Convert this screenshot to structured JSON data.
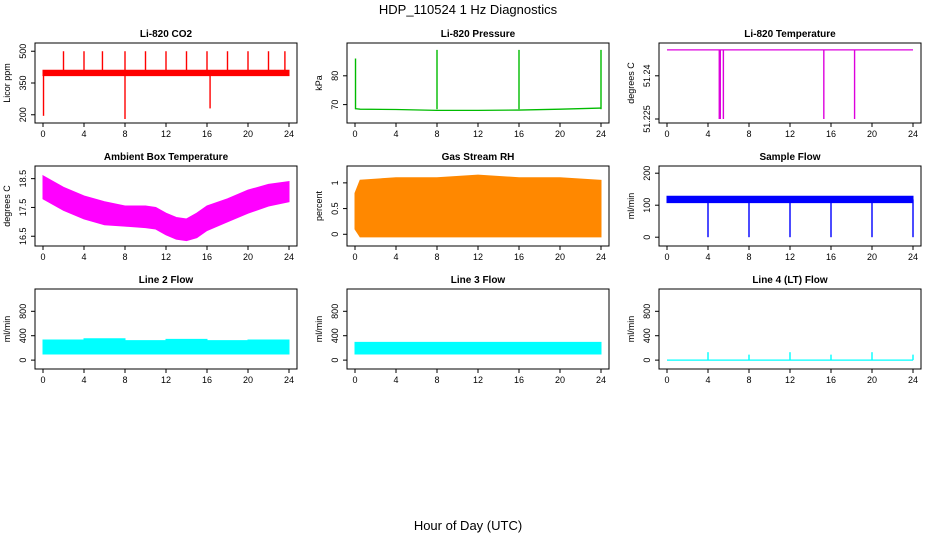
{
  "figure": {
    "title": "HDP_110524  1 Hz Diagnostics",
    "xlabel": "Hour of Day (UTC)"
  },
  "chart_data": [
    {
      "type": "line",
      "title": "Li-820 CO2",
      "ylabel": "Licor ppm",
      "color": "#ff0000",
      "xlim": [
        0,
        24
      ],
      "xticks": [
        0,
        4,
        8,
        12,
        16,
        20,
        24
      ],
      "ylim": [
        180,
        520
      ],
      "yticks": [
        200,
        350,
        500
      ],
      "series": [
        {
          "kind": "band",
          "x": [
            0,
            24
          ],
          "low": [
            385,
            385
          ],
          "high": [
            410,
            410
          ]
        },
        {
          "kind": "spikes",
          "x": [
            2,
            4,
            5.8,
            8,
            10,
            12,
            14,
            16,
            18,
            20,
            22,
            23.6
          ],
          "base": 400,
          "values": [
            500,
            500,
            500,
            500,
            500,
            500,
            500,
            500,
            500,
            500,
            500,
            500
          ]
        },
        {
          "kind": "spikes",
          "x": [
            0.05,
            8,
            16.3
          ],
          "base": 390,
          "values": [
            195,
            180,
            230
          ]
        }
      ]
    },
    {
      "type": "line",
      "title": "Li-820 Pressure",
      "ylabel": "kPa",
      "color": "#00bb00",
      "xlim": [
        0,
        24
      ],
      "xticks": [
        0,
        4,
        8,
        12,
        16,
        20,
        24
      ],
      "ylim": [
        65,
        90
      ],
      "yticks": [
        70,
        80
      ],
      "series": [
        {
          "kind": "line",
          "x": [
            0,
            0.5,
            4,
            8,
            12,
            16,
            20,
            24
          ],
          "y": [
            68.6,
            68.4,
            68.3,
            68.0,
            68.0,
            68.1,
            68.4,
            68.8
          ]
        },
        {
          "kind": "spikes",
          "x": [
            0.05,
            8,
            16,
            24
          ],
          "base": 68.4,
          "values": [
            86,
            89,
            89,
            89
          ]
        }
      ]
    },
    {
      "type": "line",
      "title": "Li-820 Temperature",
      "ylabel": "degrees C",
      "color": "#dd00dd",
      "xlim": [
        0,
        24
      ],
      "xticks": [
        0,
        4,
        8,
        12,
        16,
        20,
        24
      ],
      "ylim": [
        51.225,
        51.25
      ],
      "yticks": [
        51.225,
        51.24
      ],
      "series": [
        {
          "kind": "line",
          "x": [
            0,
            24
          ],
          "y": [
            51.249,
            51.249
          ]
        },
        {
          "kind": "spikes",
          "x": [
            5.1,
            5.2,
            5.5,
            15.3,
            18.3
          ],
          "base": 51.249,
          "values": [
            51.225,
            51.225,
            51.225,
            51.225,
            51.225
          ]
        }
      ]
    },
    {
      "type": "line",
      "title": "Ambient Box Temperature",
      "ylabel": "degrees C",
      "color": "#ff00ff",
      "xlim": [
        0,
        24
      ],
      "xticks": [
        0,
        4,
        8,
        12,
        16,
        20,
        24
      ],
      "ylim": [
        16.3,
        18.8
      ],
      "yticks": [
        16.5,
        17.5,
        18.5
      ],
      "series": [
        {
          "kind": "band",
          "x": [
            0,
            1,
            2,
            4,
            6,
            8,
            10,
            11,
            12,
            13,
            14,
            15,
            16,
            18,
            20,
            22,
            24
          ],
          "low": [
            17.8,
            17.6,
            17.4,
            17.1,
            16.9,
            16.85,
            16.8,
            16.75,
            16.55,
            16.4,
            16.35,
            16.45,
            16.7,
            17.0,
            17.3,
            17.55,
            17.7
          ],
          "high": [
            18.6,
            18.4,
            18.2,
            17.9,
            17.7,
            17.55,
            17.55,
            17.5,
            17.3,
            17.15,
            17.1,
            17.3,
            17.55,
            17.8,
            18.1,
            18.3,
            18.4
          ]
        }
      ]
    },
    {
      "type": "scatter",
      "title": "Gas Stream RH",
      "ylabel": "percent",
      "color": "#ff8800",
      "xlim": [
        0,
        24
      ],
      "xticks": [
        0,
        4,
        8,
        12,
        16,
        20,
        24
      ],
      "ylim": [
        -0.15,
        1.25
      ],
      "yticks": [
        0.0,
        0.5,
        1.0
      ],
      "series": [
        {
          "kind": "band",
          "x": [
            0,
            0.5,
            4,
            8,
            12,
            16,
            20,
            24
          ],
          "low": [
            0.1,
            -0.05,
            -0.05,
            -0.05,
            -0.05,
            -0.05,
            -0.05,
            -0.05
          ],
          "high": [
            0.8,
            1.05,
            1.1,
            1.1,
            1.15,
            1.1,
            1.1,
            1.05
          ]
        }
      ]
    },
    {
      "type": "line",
      "title": "Sample Flow",
      "ylabel": "ml/min",
      "color": "#0000ff",
      "xlim": [
        0,
        24
      ],
      "xticks": [
        0,
        4,
        8,
        12,
        16,
        20,
        24
      ],
      "ylim": [
        -15,
        210
      ],
      "yticks": [
        0,
        100,
        200
      ],
      "series": [
        {
          "kind": "band",
          "x": [
            0,
            24
          ],
          "low": [
            108,
            108
          ],
          "high": [
            128,
            128
          ]
        },
        {
          "kind": "spikes",
          "x": [
            4,
            8,
            12,
            16,
            20,
            24
          ],
          "base": 118,
          "values": [
            0,
            0,
            0,
            0,
            0,
            0
          ]
        }
      ]
    },
    {
      "type": "line",
      "title": "Line 2 Flow",
      "ylabel": "ml/min",
      "color": "#00ffff",
      "xlim": [
        0,
        24
      ],
      "xticks": [
        0,
        4,
        8,
        12,
        16,
        20,
        24
      ],
      "ylim": [
        -80,
        1100
      ],
      "yticks": [
        0,
        400,
        800
      ],
      "series": [
        {
          "kind": "band",
          "x": [
            0,
            4,
            4,
            8,
            8,
            12,
            12,
            16,
            16,
            20,
            20,
            24
          ],
          "low": [
            100,
            100,
            100,
            100,
            100,
            100,
            100,
            100,
            100,
            100,
            100,
            100
          ],
          "high": [
            330,
            330,
            350,
            350,
            320,
            320,
            340,
            340,
            320,
            320,
            330,
            330
          ]
        }
      ]
    },
    {
      "type": "line",
      "title": "Line 3 Flow",
      "ylabel": "ml/min",
      "color": "#00ffff",
      "xlim": [
        0,
        24
      ],
      "xticks": [
        0,
        4,
        8,
        12,
        16,
        20,
        24
      ],
      "ylim": [
        -80,
        1100
      ],
      "yticks": [
        0,
        400,
        800
      ],
      "series": [
        {
          "kind": "band",
          "x": [
            0,
            24
          ],
          "low": [
            100,
            100
          ],
          "high": [
            290,
            290
          ]
        }
      ]
    },
    {
      "type": "line",
      "title": "Line 4 (LT) Flow",
      "ylabel": "ml/min",
      "color": "#00ffff",
      "xlim": [
        0,
        24
      ],
      "xticks": [
        0,
        4,
        8,
        12,
        16,
        20,
        24
      ],
      "ylim": [
        -80,
        1100
      ],
      "yticks": [
        0,
        400,
        800
      ],
      "series": [
        {
          "kind": "line",
          "x": [
            0,
            24
          ],
          "y": [
            0,
            0
          ]
        },
        {
          "kind": "spikes",
          "x": [
            4,
            8,
            12,
            16,
            20,
            24
          ],
          "base": 0,
          "values": [
            130,
            90,
            130,
            90,
            130,
            90
          ]
        }
      ]
    }
  ]
}
